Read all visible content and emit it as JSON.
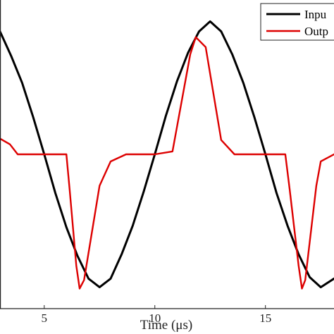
{
  "chart_data": {
    "type": "line",
    "xlabel": "Time (μs)",
    "ylabel": "",
    "xlim": [
      3.0,
      18.1
    ],
    "ylim": [
      -1.08,
      1.08
    ],
    "x_ticks": [
      5,
      10,
      15
    ],
    "x_tick_labels": [
      "5",
      "10",
      "15"
    ],
    "grid": false,
    "legend_position": "top-right",
    "series": [
      {
        "name": "Inpu",
        "color": "#000000",
        "x": [
          3.0,
          3.5,
          4.0,
          4.5,
          5.0,
          5.5,
          6.0,
          6.5,
          7.0,
          7.5,
          8.0,
          8.5,
          9.0,
          9.5,
          10.0,
          10.5,
          11.0,
          11.5,
          12.0,
          12.5,
          13.0,
          13.5,
          14.0,
          14.5,
          15.0,
          15.5,
          16.0,
          16.5,
          17.0,
          17.5,
          18.1
        ],
        "y": [
          0.86,
          0.69,
          0.5,
          0.26,
          0.0,
          -0.27,
          -0.51,
          -0.71,
          -0.87,
          -0.93,
          -0.87,
          -0.7,
          -0.5,
          -0.26,
          0.0,
          0.27,
          0.51,
          0.71,
          0.86,
          0.93,
          0.86,
          0.7,
          0.5,
          0.26,
          0.0,
          -0.27,
          -0.5,
          -0.7,
          -0.86,
          -0.93,
          -0.87
        ]
      },
      {
        "name": "Outp",
        "color": "#dd0000",
        "x": [
          3.0,
          3.45,
          3.8,
          5.0,
          6.0,
          6.15,
          6.45,
          6.6,
          6.8,
          7.5,
          8.0,
          8.7,
          10.0,
          10.8,
          11.6,
          11.85,
          12.3,
          13.0,
          13.6,
          15.0,
          15.9,
          16.1,
          16.5,
          16.65,
          16.8,
          17.3,
          17.5,
          18.1
        ],
        "y": [
          0.11,
          0.07,
          0.0,
          0.0,
          0.0,
          -0.25,
          -0.78,
          -0.94,
          -0.88,
          -0.22,
          -0.05,
          0.0,
          0.0,
          0.02,
          0.7,
          0.82,
          0.75,
          0.1,
          0.0,
          0.0,
          0.0,
          -0.25,
          -0.78,
          -0.94,
          -0.88,
          -0.22,
          -0.05,
          0.0
        ]
      }
    ]
  }
}
